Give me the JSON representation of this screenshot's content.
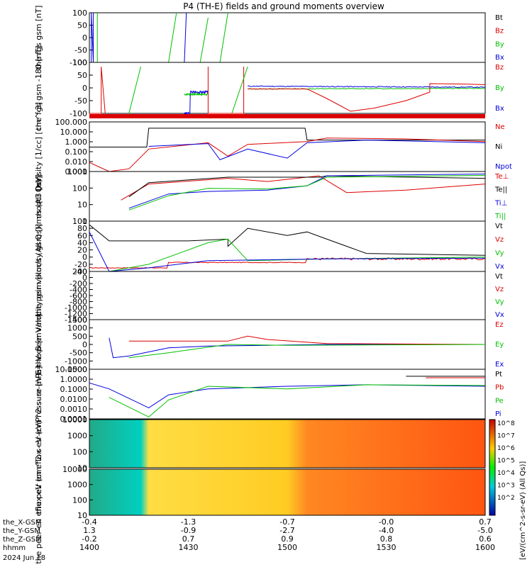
{
  "title": "P4 (TH-E) fields and ground moments overview",
  "colors": {
    "black": "#000000",
    "red": "#dd0000",
    "green": "#00c000",
    "blue": "#0000dd"
  },
  "chart_data": [
    {
      "type": "line",
      "id": "fgs",
      "ylabel": [
        "the",
        "fgs",
        "gsm",
        "[nT]"
      ],
      "yticks": [
        "100",
        "50",
        "0",
        "-50",
        "-100"
      ],
      "ylim": [
        -100,
        100
      ],
      "legend": [
        {
          "name": "Bt",
          "color": "black"
        },
        {
          "name": "Bz",
          "color": "red"
        },
        {
          "name": "By",
          "color": "green"
        },
        {
          "name": "Bx",
          "color": "blue"
        }
      ]
    },
    {
      "type": "line",
      "id": "fgs_dsl",
      "ylabel": [
        "the",
        "fgs",
        "gsm",
        "-180",
        "[nT]"
      ],
      "yticks": [
        "100",
        "50",
        "0",
        "-50",
        "-100"
      ],
      "ylim": [
        -120,
        120
      ],
      "legend": [
        {
          "name": "Bz",
          "color": "red"
        },
        {
          "name": "By",
          "color": "green"
        },
        {
          "name": "Bx",
          "color": "blue"
        }
      ]
    },
    {
      "type": "line",
      "id": "density",
      "ylabel": [
        "Density",
        "[1/cc]",
        "[cm^-3]"
      ],
      "yticks": [
        "100.000",
        "10.000",
        "1.000",
        "0.100",
        "0.010",
        "0.001"
      ],
      "ylim": [
        0.001,
        300
      ],
      "legend": [
        {
          "name": "Ne",
          "color": "red"
        },
        {
          "name": "Ni",
          "color": "black"
        },
        {
          "name": "Npot",
          "color": "blue"
        }
      ]
    },
    {
      "type": "line",
      "id": "temp",
      "ylabel": [
        "moqt3",
        "[eV]"
      ],
      "yticks": [
        "1000",
        "100",
        "10",
        "1"
      ],
      "ylim": [
        1,
        3000
      ],
      "legend": [
        {
          "name": "Te⊥",
          "color": "red"
        },
        {
          "name": "Te||",
          "color": "black"
        },
        {
          "name": "Ti⊥",
          "color": "blue"
        },
        {
          "name": "Ti||",
          "color": "green"
        }
      ]
    },
    {
      "type": "line",
      "id": "peir_vel",
      "ylabel": [
        "the",
        "peir",
        "velocity",
        "gsm",
        "[km/s (All Qs)]"
      ],
      "yticks": [
        "100",
        "80",
        "60",
        "40",
        "20",
        "0",
        "-20",
        "-40"
      ],
      "ylim": [
        -40,
        100
      ],
      "legend": [
        {
          "name": "Vt",
          "color": "black"
        },
        {
          "name": "Vz",
          "color": "red"
        },
        {
          "name": "Vy",
          "color": "green"
        },
        {
          "name": "Vx",
          "color": "blue"
        }
      ]
    },
    {
      "type": "line",
      "id": "peer_vel",
      "ylabel": [
        "the",
        "peer",
        "velocity",
        "gsm",
        "[km/s (All Qs)]"
      ],
      "yticks": [
        "200",
        "0",
        "-200",
        "-400",
        "-600",
        "-800",
        "-1000",
        "-1200",
        "-1400"
      ],
      "ylim": [
        -1400,
        200
      ],
      "legend": [
        {
          "name": "Vt",
          "color": "black"
        },
        {
          "name": "Vz",
          "color": "red"
        },
        {
          "name": "Vy",
          "color": "green"
        },
        {
          "name": "Vx",
          "color": "blue"
        }
      ]
    },
    {
      "type": "line",
      "id": "efield",
      "ylabel": [
        "E=-VxB",
        "[mV/m]"
      ],
      "yticks": [
        "1500",
        "1000",
        "500",
        "0",
        "-500",
        "-1000",
        "-1500"
      ],
      "ylim": [
        -1500,
        1500
      ],
      "legend": [
        {
          "name": "Ez",
          "color": "red"
        },
        {
          "name": "Ey",
          "color": "green"
        },
        {
          "name": "Ex",
          "color": "blue"
        }
      ]
    },
    {
      "type": "line",
      "id": "pressure",
      "ylabel": [
        "Pressure",
        "[nPa]"
      ],
      "yticks": [
        "10.0000",
        "1.0000",
        "0.1000",
        "0.0100",
        "0.0010",
        "0.0001"
      ],
      "ylim": [
        3e-05,
        20
      ],
      "legend": [
        {
          "name": "Pt",
          "color": "black"
        },
        {
          "name": "Pb",
          "color": "red"
        },
        {
          "name": "Pe",
          "color": "green"
        },
        {
          "name": "Pi",
          "color": "blue"
        }
      ]
    },
    {
      "type": "heatmap",
      "id": "peir_spec",
      "ylabel": [
        "the",
        "peir",
        "en",
        "eflux",
        "eV",
        "(cm^2-s-",
        "sr-eV)"
      ],
      "yticks": [
        "10000",
        "1000",
        "100",
        "10"
      ],
      "ylim": [
        5,
        25000
      ]
    },
    {
      "type": "heatmap",
      "id": "peer_spec",
      "ylabel": [
        "the",
        "peer",
        "en",
        "eflux",
        "eV",
        "(cm^2-s-",
        "sr-eV)"
      ],
      "yticks": [
        "10000",
        "1000",
        "100",
        "10"
      ],
      "ylim": [
        5,
        25000
      ]
    }
  ],
  "colorbar": {
    "ticks": [
      "10^8",
      "10^7",
      "10^6",
      "10^5",
      "10^4",
      "10^3",
      "10^2"
    ],
    "label": "[eV/(cm^2-s-sr-eV)]",
    "label2": "[eV/(cm^2-s-sr-eV) (All Qs)]"
  },
  "xaxis": {
    "rows": [
      {
        "name": "the_X-GSM",
        "values": [
          "-0.4",
          "-1.3",
          "-0.7",
          "-0.0",
          "0.7"
        ]
      },
      {
        "name": "the_Y-GSM",
        "values": [
          "1.3",
          "-0.9",
          "-2.7",
          "-4.0",
          "-5.0"
        ]
      },
      {
        "name": "the_Z-GSM",
        "values": [
          "-0.2",
          "0.7",
          "0.9",
          "0.8",
          "0.6"
        ]
      },
      {
        "name": "hhmm",
        "values": [
          "1400",
          "1430",
          "1500",
          "1530",
          "1600"
        ]
      }
    ],
    "date": "2024 Jun 18"
  }
}
